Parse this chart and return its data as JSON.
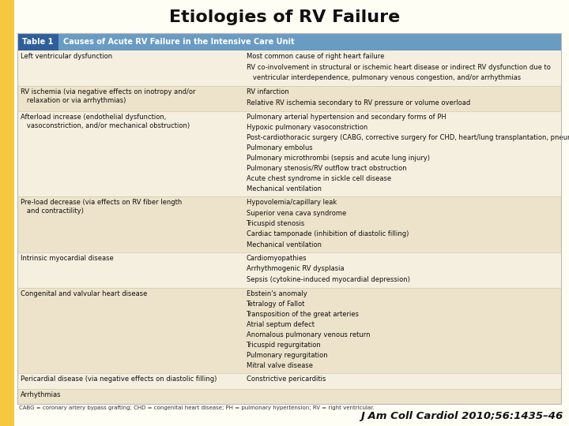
{
  "title": "Etiologies of RV Failure",
  "citation": "J Am Coll Cardiol 2010;56:1435–46",
  "header_label": "Table 1",
  "header_text": "Causes of Acute RV Failure in the Intensive Care Unit",
  "header_label_bg": "#2E5F9A",
  "header_bg": "#6A9BC3",
  "header_text_color": "#FFFFFF",
  "table_bg_light": "#F5EFE0",
  "table_bg_dark": "#EDE3CB",
  "table_border": "#BBBBBB",
  "row_line_color": "#D4C9B0",
  "col_split": 0.415,
  "footnote": "CABG = coronary artery bypass grafting; CHD = congenital heart disease; PH = pulmonary hypertension; RV = right ventricular.",
  "outer_bg": "#FFFEF5",
  "yellow_accent": "#F5C842",
  "rows": [
    {
      "left": "Left ventricular dysfunction",
      "right": [
        "Most common cause of right heart failure",
        "RV co-involvement in structural or ischemic heart disease or indirect RV dysfunction due to",
        "   ventricular interdependence, pulmonary venous congestion, and/or arrhythmias"
      ],
      "shaded": false
    },
    {
      "left": "RV ischemia (via negative effects on inotropy and/or\n   relaxation or via arrhythmias)",
      "right": [
        "RV infarction",
        "Relative RV ischemia secondary to RV pressure or volume overload"
      ],
      "shaded": true
    },
    {
      "left": "Afterload increase (endothelial dysfunction,\n   vasoconstriction, and/or mechanical obstruction)",
      "right": [
        "Pulmonary arterial hypertension and secondary forms of PH",
        "Hypoxic pulmonary vasoconstriction",
        "Post-cardiothoracic surgery (CABG, corrective surgery for CHD, heart/lung transplantation, pneumonectomy)",
        "Pulmonary embolus",
        "Pulmonary microthrombi (sepsis and acute lung injury)",
        "Pulmonary stenosis/RV outflow tract obstruction",
        "Acute chest syndrome in sickle cell disease",
        "Mechanical ventilation"
      ],
      "shaded": false
    },
    {
      "left": "Pre-load decrease (via effects on RV fiber length\n   and contractility)",
      "right": [
        "Hypovolemia/capillary leak",
        "Superior vena cava syndrome",
        "Tricuspid stenosis",
        "Cardiac tamponade (inhibition of diastolic filling)",
        "Mechanical ventilation"
      ],
      "shaded": true
    },
    {
      "left": "Intrinsic myocardial disease",
      "right": [
        "Cardiomyopathies",
        "Arrhythmogenic RV dysplasia",
        "Sepsis (cytokine-induced myocardial depression)"
      ],
      "shaded": false
    },
    {
      "left": "Congenital and valvular heart disease",
      "right": [
        "Ebstein's anomaly",
        "Tetralogy of Fallot",
        "Transposition of the great arteries",
        "Atrial septum defect",
        "Anomalous pulmonary venous return",
        "Tricuspid regurgitation",
        "Pulmonary regurgitation",
        "Mitral valve disease"
      ],
      "shaded": true
    },
    {
      "left": "Pericardial disease (via negative effects on diastolic filling)",
      "right": [
        "Constrictive pericarditis"
      ],
      "shaded": false
    },
    {
      "left": "Arrhythmias",
      "right": [],
      "shaded": true
    }
  ]
}
